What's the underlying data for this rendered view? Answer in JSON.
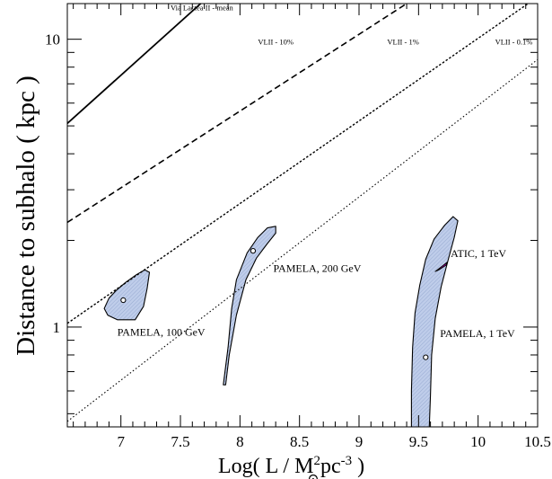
{
  "chart_data": {
    "type": "line",
    "xlabel": "Log( L / M",
    "xlabel_sub": "⊙",
    "xlabel_sup": "2",
    "xlabel_tail": "pc",
    "xlabel_tail_sup": "-3",
    "xlabel_close": " )",
    "ylabel": "Distance to subhalo  ( kpc )",
    "xlim": [
      6.55,
      10.5
    ],
    "ylim": [
      0.45,
      13.3
    ],
    "yscale": "log",
    "grid": false,
    "x_ticks": [
      {
        "value": 7,
        "label": "7"
      },
      {
        "value": 7.5,
        "label": "7.5"
      },
      {
        "value": 8,
        "label": "8"
      },
      {
        "value": 8.5,
        "label": "8.5"
      },
      {
        "value": 9,
        "label": "9"
      },
      {
        "value": 9.5,
        "label": "9.5"
      },
      {
        "value": 10,
        "label": "10"
      },
      {
        "value": 10.5,
        "label": "10.5"
      }
    ],
    "y_ticks": [
      {
        "value": 1,
        "label": "1"
      },
      {
        "value": 10,
        "label": "10"
      }
    ],
    "lines": [
      {
        "name": "Via Lactea II - mean",
        "style": "solid",
        "width": 1.8,
        "points": [
          [
            6.55,
            5.1
          ],
          [
            7.67,
            13.3
          ]
        ],
        "label_at": [
          7.68,
          12.6
        ]
      },
      {
        "name": "VLII - 10%",
        "style": "dashed",
        "width": 1.6,
        "points": [
          [
            6.55,
            2.31
          ],
          [
            9.4,
            13.3
          ]
        ],
        "label_at": [
          8.3,
          9.6
        ]
      },
      {
        "name": "VLII - 1%",
        "style": "dotted-dense",
        "width": 1.4,
        "points": [
          [
            6.55,
            1.03
          ],
          [
            10.42,
            13.3
          ]
        ],
        "label_at": [
          9.37,
          9.6
        ]
      },
      {
        "name": "VLII - 0.1%",
        "style": "dotted",
        "width": 1.1,
        "points": [
          [
            6.55,
            0.47
          ],
          [
            10.5,
            8.5
          ]
        ],
        "label_at": [
          10.3,
          9.6
        ]
      }
    ],
    "regions": [
      {
        "name": "PAMELA, 100 GeV",
        "color": "#b8c8e8",
        "best_fit": [
          7.02,
          1.24
        ],
        "outline": [
          [
            7.12,
            1.06
          ],
          [
            6.97,
            1.06
          ],
          [
            6.89,
            1.1
          ],
          [
            6.86,
            1.16
          ],
          [
            6.9,
            1.26
          ],
          [
            6.96,
            1.34
          ],
          [
            7.04,
            1.43
          ],
          [
            7.13,
            1.52
          ],
          [
            7.2,
            1.58
          ],
          [
            7.24,
            1.55
          ],
          [
            7.22,
            1.36
          ],
          [
            7.19,
            1.18
          ]
        ],
        "label_at": [
          6.97,
          0.935
        ]
      },
      {
        "name": "PAMELA, 200 GeV",
        "color": "#b8c8e8",
        "best_fit": [
          8.11,
          1.84
        ],
        "outline": [
          [
            7.86,
            0.63
          ],
          [
            7.9,
            0.85
          ],
          [
            7.93,
            1.16
          ],
          [
            7.97,
            1.46
          ],
          [
            8.06,
            1.81
          ],
          [
            8.15,
            2.05
          ],
          [
            8.23,
            2.21
          ],
          [
            8.3,
            2.24
          ],
          [
            8.3,
            2.12
          ],
          [
            8.23,
            1.95
          ],
          [
            8.14,
            1.74
          ],
          [
            8.05,
            1.46
          ],
          [
            7.97,
            1.1
          ],
          [
            7.91,
            0.8
          ],
          [
            7.88,
            0.63
          ]
        ],
        "label_at": [
          8.28,
          1.555
        ]
      },
      {
        "name": "PAMELA, 1 TeV",
        "color": "#b8c8e8",
        "best_fit": [
          9.56,
          0.785
        ],
        "outline": [
          [
            9.44,
            0.45
          ],
          [
            9.44,
            0.6
          ],
          [
            9.45,
            0.85
          ],
          [
            9.47,
            1.12
          ],
          [
            9.51,
            1.4
          ],
          [
            9.56,
            1.72
          ],
          [
            9.63,
            2.02
          ],
          [
            9.72,
            2.26
          ],
          [
            9.79,
            2.42
          ],
          [
            9.83,
            2.34
          ],
          [
            9.8,
            2.05
          ],
          [
            9.75,
            1.72
          ],
          [
            9.69,
            1.38
          ],
          [
            9.64,
            1.07
          ],
          [
            9.61,
            0.8
          ],
          [
            9.6,
            0.58
          ],
          [
            9.59,
            0.45
          ]
        ],
        "label_at": [
          9.68,
          0.925
        ]
      },
      {
        "name": "ATIC, 1 TeV",
        "color": "#cc00cc",
        "best_fit": null,
        "outline": [
          [
            9.64,
            1.56
          ],
          [
            9.7,
            1.63
          ],
          [
            9.74,
            1.68
          ],
          [
            9.73,
            1.64
          ],
          [
            9.67,
            1.58
          ]
        ],
        "label_at": [
          9.77,
          1.75
        ]
      }
    ]
  }
}
